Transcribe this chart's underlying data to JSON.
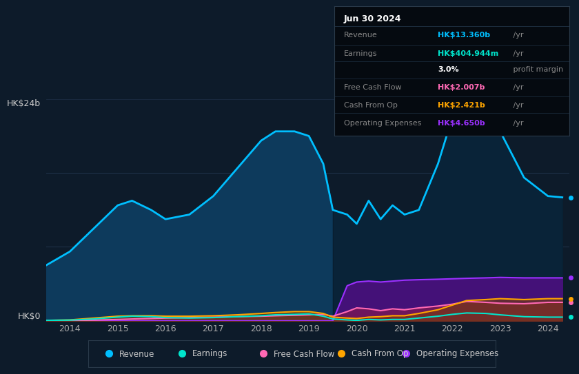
{
  "bg_color": "#0d1b2a",
  "plot_bg_color": "#0d1b2a",
  "revenue_color": "#00bfff",
  "earnings_color": "#00e5cc",
  "fcf_color": "#ff69b4",
  "cashfromop_color": "#ffa500",
  "opex_color": "#9b30ff",
  "ylabel_top": "HK$24b",
  "ylabel_zero": "HK$0",
  "legend_items": [
    {
      "label": "Revenue",
      "color": "#00bfff"
    },
    {
      "label": "Earnings",
      "color": "#00e5cc"
    },
    {
      "label": "Free Cash Flow",
      "color": "#ff69b4"
    },
    {
      "label": "Cash From Op",
      "color": "#ffa500"
    },
    {
      "label": "Operating Expenses",
      "color": "#9b30ff"
    }
  ],
  "tooltip_title": "Jun 30 2024",
  "years": [
    2013.5,
    2014.0,
    2014.5,
    2015.0,
    2015.3,
    2015.7,
    2016.0,
    2016.5,
    2017.0,
    2017.5,
    2018.0,
    2018.3,
    2018.7,
    2019.0,
    2019.3,
    2019.5,
    2019.8,
    2020.0,
    2020.25,
    2020.5,
    2020.75,
    2021.0,
    2021.3,
    2021.7,
    2022.0,
    2022.3,
    2022.7,
    2023.0,
    2023.5,
    2024.0,
    2024.3
  ],
  "revenue": [
    6.0,
    7.5,
    10.0,
    12.5,
    13.0,
    12.0,
    11.0,
    11.5,
    13.5,
    16.5,
    19.5,
    20.5,
    20.5,
    20.0,
    17.0,
    12.0,
    11.5,
    10.5,
    13.0,
    11.0,
    12.5,
    11.5,
    12.0,
    17.0,
    22.0,
    24.0,
    23.0,
    20.5,
    15.5,
    13.5,
    13.36
  ],
  "earnings": [
    0.05,
    0.08,
    0.2,
    0.4,
    0.5,
    0.45,
    0.35,
    0.3,
    0.35,
    0.45,
    0.55,
    0.65,
    0.7,
    0.75,
    0.5,
    0.2,
    0.1,
    0.05,
    0.15,
    0.1,
    0.15,
    0.15,
    0.3,
    0.5,
    0.7,
    0.85,
    0.8,
    0.65,
    0.45,
    0.4,
    0.4
  ],
  "fcf": [
    0.0,
    0.02,
    0.08,
    0.15,
    0.2,
    0.25,
    0.3,
    0.35,
    0.4,
    0.45,
    0.5,
    0.55,
    0.6,
    0.65,
    0.7,
    0.5,
    1.0,
    1.4,
    1.3,
    1.1,
    1.3,
    1.2,
    1.4,
    1.6,
    1.8,
    2.1,
    2.0,
    1.9,
    1.85,
    2.0,
    2.0
  ],
  "cashfromop": [
    0.05,
    0.1,
    0.3,
    0.5,
    0.55,
    0.55,
    0.5,
    0.5,
    0.55,
    0.65,
    0.8,
    0.9,
    1.0,
    1.0,
    0.8,
    0.4,
    0.3,
    0.25,
    0.4,
    0.45,
    0.55,
    0.55,
    0.8,
    1.2,
    1.7,
    2.2,
    2.3,
    2.4,
    2.3,
    2.4,
    2.4
  ],
  "opex": [
    0.0,
    0.0,
    0.0,
    0.0,
    0.0,
    0.0,
    0.0,
    0.0,
    0.0,
    0.0,
    0.0,
    0.0,
    0.0,
    0.0,
    0.0,
    0.0,
    3.8,
    4.2,
    4.3,
    4.2,
    4.3,
    4.4,
    4.45,
    4.5,
    4.55,
    4.6,
    4.65,
    4.7,
    4.65,
    4.65,
    4.65
  ],
  "ylim": [
    0,
    24
  ],
  "xlim": [
    2013.5,
    2024.45
  ],
  "shade_start_x": 2019.5
}
